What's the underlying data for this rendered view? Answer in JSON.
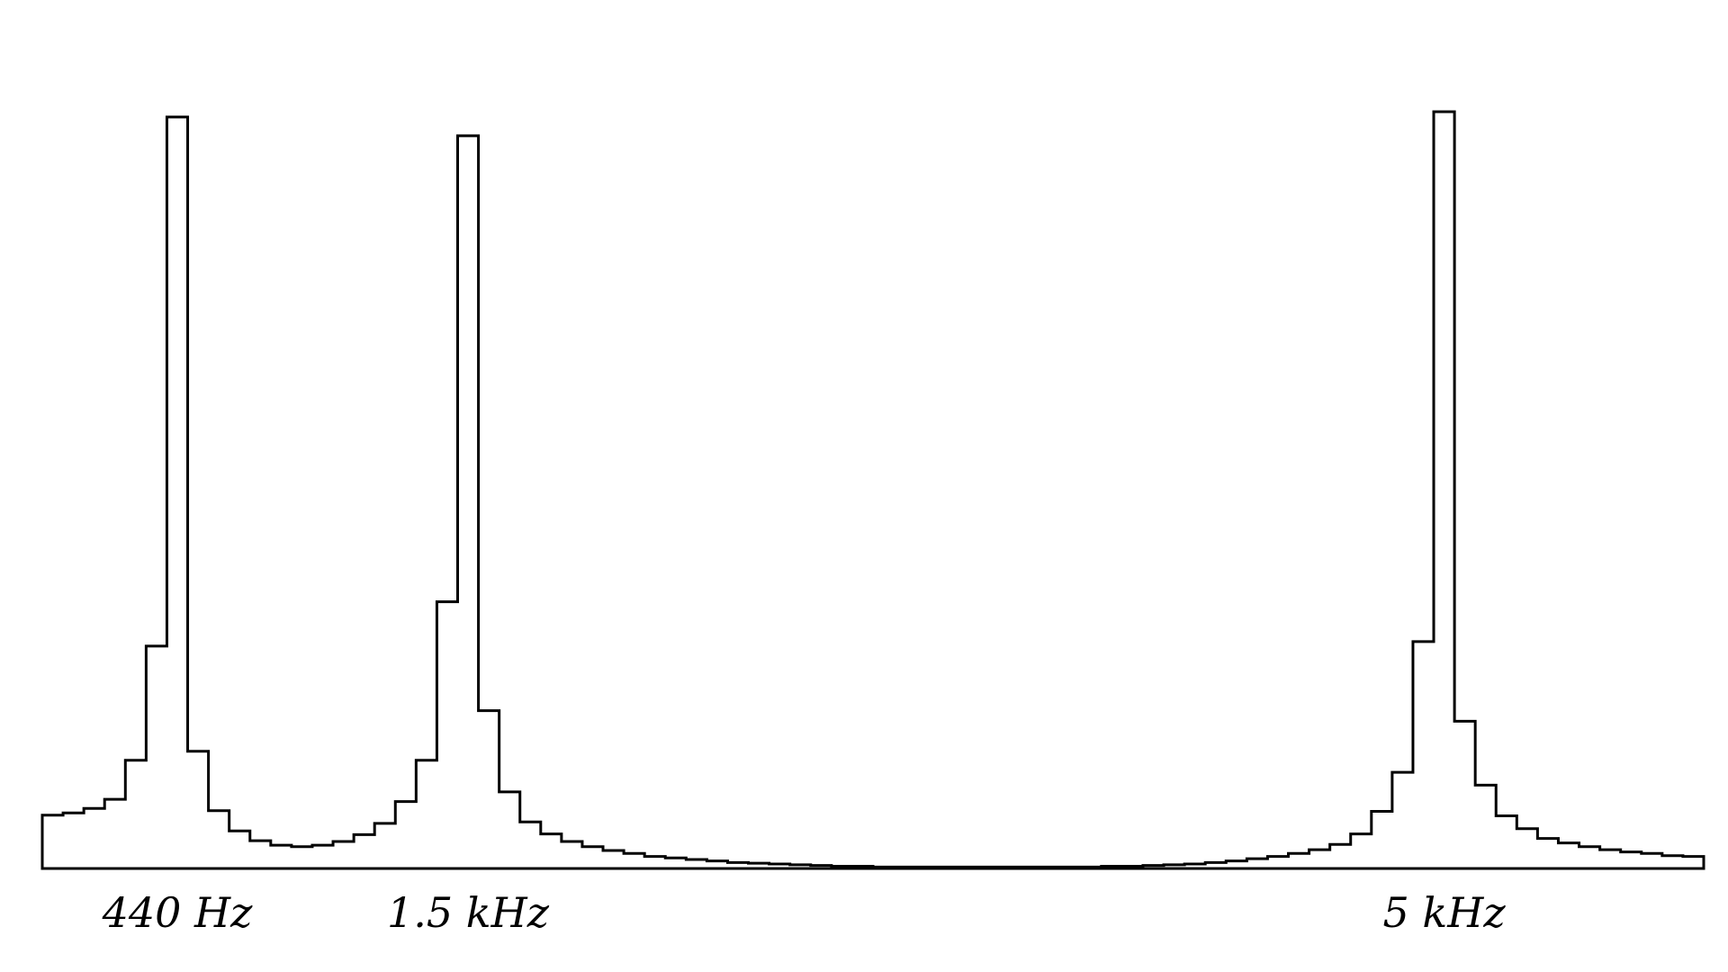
{
  "chart_data": {
    "type": "bar",
    "title": "",
    "xlabel": "",
    "ylabel": "",
    "grid": false,
    "legend": "none",
    "ylim": [
      0,
      100
    ],
    "bin_count": 80,
    "values": [
      7.1,
      7.4,
      8.0,
      9.2,
      14.4,
      29.6,
      100.0,
      15.6,
      7.7,
      5.0,
      3.7,
      3.1,
      2.9,
      3.1,
      3.6,
      4.5,
      6.0,
      8.9,
      14.4,
      35.5,
      97.5,
      21.0,
      10.2,
      6.2,
      4.6,
      3.6,
      2.9,
      2.4,
      2.0,
      1.6,
      1.4,
      1.2,
      1.0,
      0.8,
      0.7,
      0.6,
      0.5,
      0.4,
      0.3,
      0.3,
      0.2,
      0.2,
      0.2,
      0.2,
      0.2,
      0.2,
      0.2,
      0.2,
      0.2,
      0.2,
      0.2,
      0.3,
      0.3,
      0.4,
      0.5,
      0.6,
      0.8,
      1.0,
      1.3,
      1.6,
      2.0,
      2.5,
      3.2,
      4.6,
      7.6,
      12.8,
      30.2,
      100.7,
      19.6,
      11.1,
      7.0,
      5.3,
      4.0,
      3.4,
      2.9,
      2.5,
      2.2,
      2.0,
      1.7,
      1.6
    ],
    "annotations": [
      {
        "text": "440 Hz",
        "bin": 6
      },
      {
        "text": "1.5 kHz",
        "bin": 20
      },
      {
        "text": "5 kHz",
        "bin": 67
      }
    ],
    "stroke_color": "#000000",
    "background": "#ffffff"
  }
}
